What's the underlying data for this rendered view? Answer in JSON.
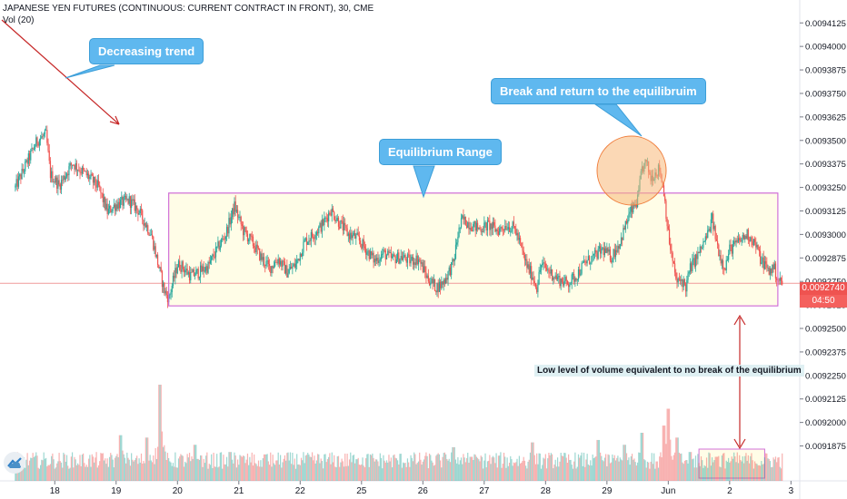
{
  "header": {
    "title": "JAPANESE YEN FUTURES (CONTINUOUS: CURRENT CONTRACT IN FRONT), 30, CME",
    "volume_indicator": "Vol (20)"
  },
  "annotations": {
    "decreasing_trend": "Decreasing trend",
    "equilibrium_range": "Equilibrium Range",
    "break_return": "Break and return to the equilibruim",
    "volume_note": "Low level of volume equivalent to no break of the equilibrium"
  },
  "price_tag": {
    "price": "0.0092740",
    "countdown": "04:50"
  },
  "colors": {
    "up": "#26a69a",
    "down": "#ef5350",
    "range_fill": "#fffde7",
    "range_border": "#d070d8",
    "callout": "#5fb8ef",
    "circle": "#f8b878",
    "arrow": "#c62828"
  },
  "chart_data": {
    "type": "candlestick",
    "title": "JAPANESE YEN FUTURES (CONTINUOUS: CURRENT CONTRACT IN FRONT), 30, CME",
    "y_ticks": [
      "0.0094125",
      "0.0094000",
      "0.0093875",
      "0.0093750",
      "0.0093625",
      "0.0093500",
      "0.0093375",
      "0.0093250",
      "0.0093125",
      "0.0093000",
      "0.0092875",
      "0.0092750",
      "0.0092625",
      "0.0092500",
      "0.0092375",
      "0.0092250",
      "0.0092125",
      "0.0092000",
      "0.0091875"
    ],
    "ylim": [
      0.009181,
      0.009416
    ],
    "x_ticks": [
      {
        "label": "18",
        "t": 9
      },
      {
        "label": "19",
        "t": 23
      },
      {
        "label": "20",
        "t": 37
      },
      {
        "label": "21",
        "t": 51
      },
      {
        "label": "22",
        "t": 65
      },
      {
        "label": "25",
        "t": 79
      },
      {
        "label": "26",
        "t": 93
      },
      {
        "label": "27",
        "t": 107
      },
      {
        "label": "28",
        "t": 121
      },
      {
        "label": "29",
        "t": 135
      },
      {
        "label": "Jun",
        "t": 149
      },
      {
        "label": "2",
        "t": 163
      },
      {
        "label": "3",
        "t": 177
      }
    ],
    "t_range": [
      -3.5,
      179
    ],
    "equilibrium_range": {
      "low": 0.009262,
      "high": 0.009322,
      "t_start": 35,
      "t_end": 174
    },
    "volume_box": {
      "t_start": 156,
      "t_end": 171
    },
    "last_price": 0.009274,
    "close_path": [
      [
        0,
        0.009325
      ],
      [
        3,
        0.00934
      ],
      [
        5,
        0.00935
      ],
      [
        7,
        0.009353
      ],
      [
        8,
        0.009332
      ],
      [
        10,
        0.009326
      ],
      [
        13,
        0.009338
      ],
      [
        15,
        0.009334
      ],
      [
        17,
        0.00933
      ],
      [
        19,
        0.009325
      ],
      [
        21,
        0.009312
      ],
      [
        23,
        0.009316
      ],
      [
        26,
        0.009318
      ],
      [
        28,
        0.009313
      ],
      [
        31,
        0.0093
      ],
      [
        33,
        0.00928
      ],
      [
        34,
        0.00927
      ],
      [
        35,
        0.009266
      ],
      [
        36,
        0.009275
      ],
      [
        37,
        0.009284
      ],
      [
        38,
        0.009283
      ],
      [
        40,
        0.009278
      ],
      [
        42,
        0.00928
      ],
      [
        44,
        0.009283
      ],
      [
        46,
        0.009292
      ],
      [
        48,
        0.0093
      ],
      [
        50,
        0.009315
      ],
      [
        52,
        0.009302
      ],
      [
        54,
        0.009296
      ],
      [
        56,
        0.009288
      ],
      [
        58,
        0.009282
      ],
      [
        60,
        0.009287
      ],
      [
        62,
        0.00928
      ],
      [
        64,
        0.009284
      ],
      [
        66,
        0.009296
      ],
      [
        68,
        0.0093
      ],
      [
        70,
        0.009305
      ],
      [
        72,
        0.009313
      ],
      [
        74,
        0.009306
      ],
      [
        76,
        0.0093
      ],
      [
        78,
        0.009298
      ],
      [
        80,
        0.009292
      ],
      [
        82,
        0.009286
      ],
      [
        84,
        0.00929
      ],
      [
        86,
        0.009287
      ],
      [
        88,
        0.009288
      ],
      [
        90,
        0.009286
      ],
      [
        92,
        0.009287
      ],
      [
        94,
        0.009277
      ],
      [
        96,
        0.009272
      ],
      [
        97,
        0.009273
      ],
      [
        98,
        0.009276
      ],
      [
        100,
        0.009285
      ],
      [
        101,
        0.0093
      ],
      [
        102,
        0.009308
      ],
      [
        104,
        0.009305
      ],
      [
        106,
        0.009303
      ],
      [
        108,
        0.009305
      ],
      [
        110,
        0.009302
      ],
      [
        112,
        0.009305
      ],
      [
        114,
        0.009303
      ],
      [
        115,
        0.009296
      ],
      [
        116,
        0.009288
      ],
      [
        117,
        0.009282
      ],
      [
        118,
        0.009278
      ],
      [
        119,
        0.009272
      ],
      [
        120,
        0.009284
      ],
      [
        122,
        0.00928
      ],
      [
        124,
        0.009276
      ],
      [
        126,
        0.009274
      ],
      [
        128,
        0.009278
      ],
      [
        130,
        0.009285
      ],
      [
        132,
        0.009288
      ],
      [
        134,
        0.009292
      ],
      [
        136,
        0.009288
      ],
      [
        138,
        0.009296
      ],
      [
        140,
        0.00931
      ],
      [
        142,
        0.009318
      ],
      [
        143,
        0.009335
      ],
      [
        144,
        0.009338
      ],
      [
        145,
        0.00933
      ],
      [
        146,
        0.009333
      ],
      [
        147,
        0.009335
      ],
      [
        148,
        0.009323
      ],
      [
        149,
        0.0093
      ],
      [
        150,
        0.009285
      ],
      [
        151,
        0.009274
      ],
      [
        152,
        0.009276
      ],
      [
        153,
        0.009272
      ],
      [
        154,
        0.009282
      ],
      [
        156,
        0.00929
      ],
      [
        158,
        0.0093
      ],
      [
        159,
        0.009308
      ],
      [
        160,
        0.009296
      ],
      [
        161,
        0.009287
      ],
      [
        162,
        0.009283
      ],
      [
        163,
        0.009292
      ],
      [
        165,
        0.009296
      ],
      [
        167,
        0.0093
      ],
      [
        168,
        0.009298
      ],
      [
        169,
        0.009294
      ],
      [
        170,
        0.009287
      ],
      [
        171,
        0.009284
      ],
      [
        172,
        0.00928
      ],
      [
        173,
        0.009283
      ],
      [
        174,
        0.009276
      ],
      [
        175,
        0.009274
      ]
    ],
    "volume_peaks": [
      [
        24,
        0.095
      ],
      [
        30,
        0.09
      ],
      [
        33,
        0.2
      ],
      [
        41,
        0.075
      ],
      [
        49,
        0.06
      ],
      [
        57,
        0.055
      ],
      [
        78,
        0.045
      ],
      [
        100,
        0.07
      ],
      [
        104,
        0.05
      ],
      [
        118,
        0.08
      ],
      [
        133,
        0.085
      ],
      [
        139,
        0.075
      ],
      [
        143,
        0.1
      ],
      [
        148,
        0.115
      ],
      [
        149,
        0.15
      ],
      [
        151,
        0.09
      ],
      [
        154,
        0.06
      ],
      [
        160,
        0.05
      ]
    ]
  }
}
